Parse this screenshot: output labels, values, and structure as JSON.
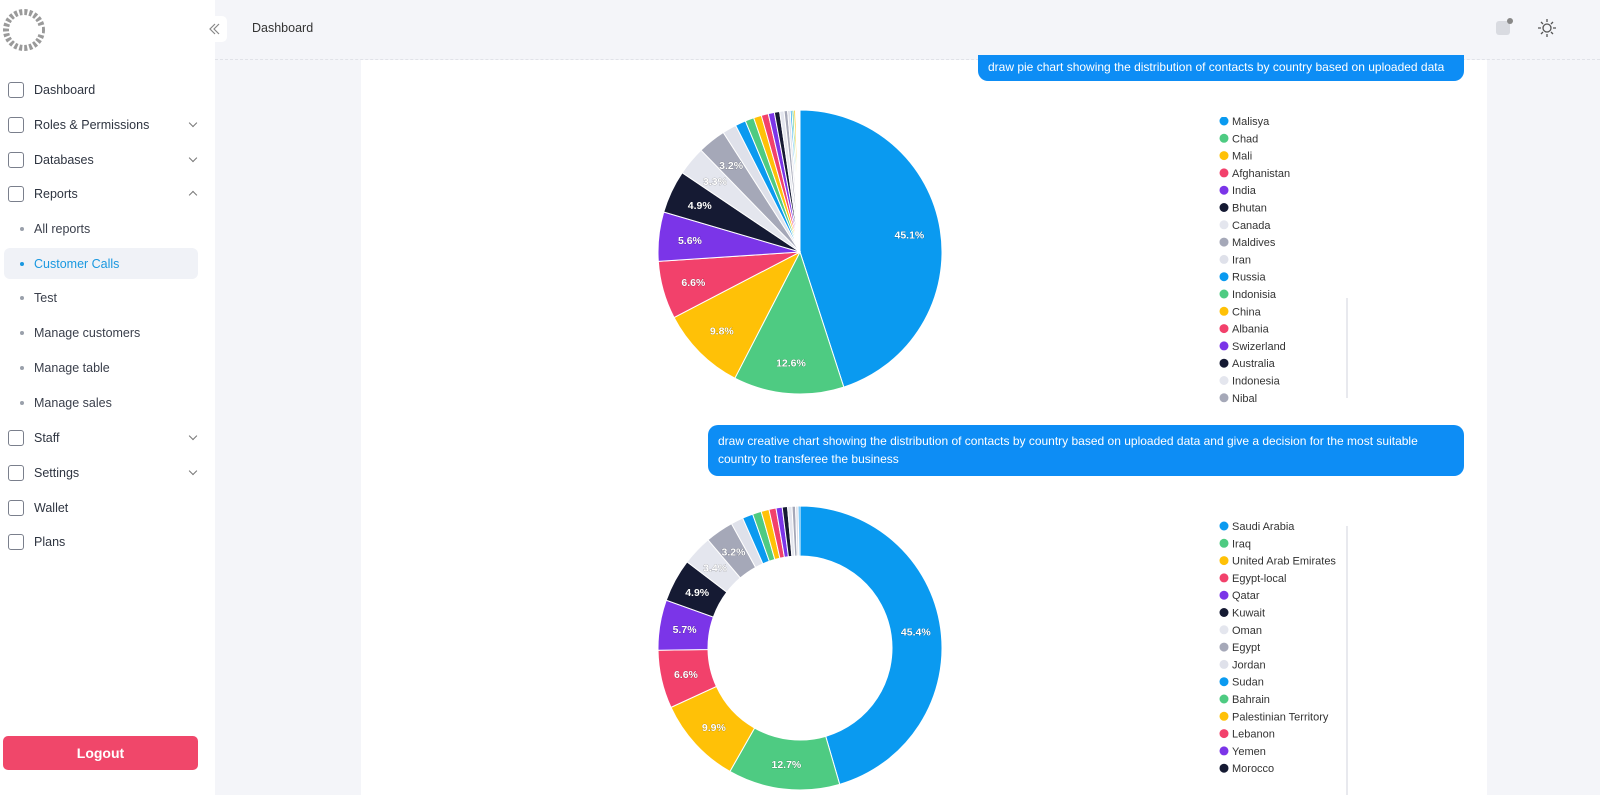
{
  "sidebar": {
    "nav": [
      {
        "label": "Dashboard"
      },
      {
        "label": "Roles & Permissions",
        "expandable": true
      },
      {
        "label": "Databases",
        "expandable": true
      },
      {
        "label": "Reports",
        "expandable": true,
        "open": true,
        "items": [
          {
            "label": "All reports"
          },
          {
            "label": "Customer Calls",
            "active": true
          },
          {
            "label": "Test"
          },
          {
            "label": "Manage customers"
          },
          {
            "label": "Manage table"
          },
          {
            "label": "Manage sales"
          }
        ]
      },
      {
        "label": "Staff",
        "expandable": true
      },
      {
        "label": "Settings",
        "expandable": true
      },
      {
        "label": "Wallet"
      },
      {
        "label": "Plans"
      }
    ],
    "logout": "Logout"
  },
  "header": {
    "title": "Dashboard"
  },
  "messages": [
    "draw pie chart showing the distribution of contacts by country based on uploaded data",
    "draw creative chart showing the distribution of contacts by country based on uploaded data and give a decision for the most suitable country to transferee the business"
  ],
  "chart_data": [
    {
      "type": "pie",
      "categories": [
        null,
        null,
        null,
        null,
        null,
        null,
        null,
        null,
        null,
        "Malisya",
        "Chad",
        "Mali",
        "Afghanistan",
        "India",
        "Bhutan",
        "Canada",
        "Maldives",
        "Iran",
        "Russia",
        "Indonisia",
        "China",
        "Albania",
        "Swizerland",
        "Australia",
        "Indonesia",
        "Nibal"
      ],
      "values": [
        45.1,
        12.6,
        9.8,
        6.6,
        5.6,
        4.9,
        3.3,
        3.2,
        1.6,
        1.2,
        1.0,
        0.9,
        0.8,
        0.7,
        0.6,
        0.5,
        0.4,
        0.3,
        0.2,
        0.2,
        0.2,
        0.1,
        0.1,
        0.1,
        0.1,
        0.1
      ],
      "value_labels": [
        "45.1%",
        "12.6%",
        "9.8%",
        "6.6%",
        "5.6%",
        "4.9%",
        "3.3%",
        "3.2%",
        null,
        null,
        null,
        null,
        null,
        null,
        null,
        null,
        null,
        null,
        null,
        null,
        null,
        null,
        null,
        null,
        null,
        null
      ],
      "colors": [
        "#0a9af0",
        "#4ecb82",
        "#ffc107",
        "#f2416b",
        "#7b35e8",
        "#151a33",
        "#e4e6ee",
        "#a5a8b8",
        "#dfe1ea"
      ]
    },
    {
      "type": "doughnut",
      "categories": [
        "Saudi Arabia",
        "Iraq",
        "United Arab Emirates",
        "Egypt-local",
        "Qatar",
        "Kuwait",
        "Oman",
        "Egypt",
        "Jordan",
        "Sudan",
        "Bahrain",
        "Palestinian Territory",
        "Lebanon",
        "Yemen",
        "Morocco",
        null,
        null,
        null,
        null
      ],
      "values": [
        45.4,
        12.7,
        9.9,
        6.6,
        5.7,
        4.9,
        3.4,
        3.2,
        1.4,
        1.2,
        1.0,
        0.9,
        0.8,
        0.7,
        0.6,
        0.5,
        0.4,
        0.3,
        0.2
      ],
      "value_labels": [
        "45.4%",
        "12.7%",
        "9.9%",
        "6.6%",
        "5.7%",
        "4.9%",
        "3.4%",
        "3.2%",
        null,
        null,
        null,
        null,
        null,
        null,
        null,
        null,
        null,
        null,
        null
      ],
      "colors": [
        "#0a9af0",
        "#4ecb82",
        "#ffc107",
        "#f2416b",
        "#7b35e8",
        "#151a33",
        "#e4e6ee",
        "#a5a8b8",
        "#dfe1ea"
      ]
    }
  ]
}
